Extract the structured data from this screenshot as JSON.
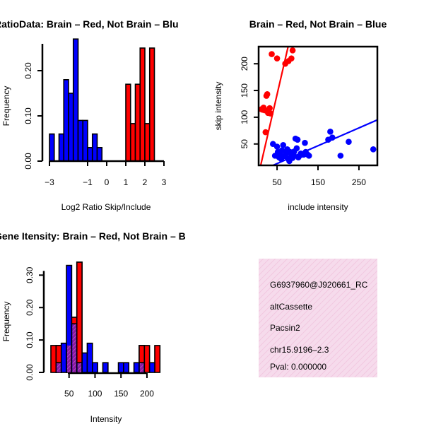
{
  "chart_data": [
    {
      "id": "ratio",
      "type": "bar",
      "title": "RatioData: Brain – Red, Not Brain – Blu",
      "xlabel": "Log2 Ratio Skip/Include",
      "ylabel": "Frequency",
      "xlim": [
        -3,
        3
      ],
      "ylim": [
        0,
        0.25
      ],
      "xticks": [
        -3,
        -1,
        0,
        1,
        2,
        3
      ],
      "yticks": [
        0.0,
        0.1,
        0.2
      ],
      "bin_width": 0.25,
      "series": [
        {
          "name": "Not Brain",
          "color": "#0000ff",
          "bins": [
            [
              -3.0,
              0.06
            ],
            [
              -2.5,
              0.06
            ],
            [
              -2.25,
              0.18
            ],
            [
              -2.0,
              0.15
            ],
            [
              -1.75,
              0.27
            ],
            [
              -1.5,
              0.09
            ],
            [
              -1.25,
              0.09
            ],
            [
              -1.0,
              0.03
            ],
            [
              -0.75,
              0.06
            ],
            [
              -0.5,
              0.03
            ]
          ]
        },
        {
          "name": "Brain",
          "color": "#ff0000",
          "bins": [
            [
              1.0,
              0.17
            ],
            [
              1.25,
              0.083
            ],
            [
              1.5,
              0.17
            ],
            [
              1.75,
              0.25
            ],
            [
              2.0,
              0.083
            ],
            [
              2.25,
              0.25
            ]
          ]
        }
      ]
    },
    {
      "id": "scatter",
      "type": "scatter",
      "title": "Brain – Red, Not Brain – Blue",
      "xlabel": "include intensity",
      "ylabel": "skip intensity",
      "xlim": [
        5,
        295
      ],
      "ylim": [
        10,
        232
      ],
      "xticks": [
        50,
        150,
        250
      ],
      "xticklabels_shown": [
        50,
        150,
        250
      ],
      "yticks": [
        50,
        100,
        150,
        200
      ],
      "series": [
        {
          "name": "Brain",
          "color": "#ff0000",
          "points": [
            [
              12,
              115
            ],
            [
              15,
              114
            ],
            [
              17,
              118
            ],
            [
              20,
              113
            ],
            [
              22,
              72
            ],
            [
              24,
              140
            ],
            [
              26,
              143
            ],
            [
              28,
              108
            ],
            [
              30,
              108
            ],
            [
              32,
              117
            ],
            [
              34,
              107
            ],
            [
              37,
              218
            ],
            [
              50,
              210
            ],
            [
              70,
              200
            ],
            [
              78,
              205
            ],
            [
              85,
              210
            ],
            [
              88,
              225
            ]
          ],
          "fit": [
            [
              10,
              10
            ],
            [
              77,
              232
            ]
          ]
        },
        {
          "name": "Not Brain",
          "color": "#0000ff",
          "points": [
            [
              40,
              50
            ],
            [
              45,
              28
            ],
            [
              50,
              45
            ],
            [
              52,
              35
            ],
            [
              55,
              25
            ],
            [
              58,
              30
            ],
            [
              60,
              22
            ],
            [
              62,
              38
            ],
            [
              65,
              48
            ],
            [
              70,
              27
            ],
            [
              72,
              32
            ],
            [
              75,
              40
            ],
            [
              78,
              22
            ],
            [
              80,
              18
            ],
            [
              82,
              35
            ],
            [
              85,
              28
            ],
            [
              88,
              24
            ],
            [
              90,
              30
            ],
            [
              92,
              36
            ],
            [
              95,
              60
            ],
            [
              98,
              42
            ],
            [
              100,
              58
            ],
            [
              102,
              25
            ],
            [
              105,
              28
            ],
            [
              108,
              32
            ],
            [
              110,
              30
            ],
            [
              115,
              30
            ],
            [
              118,
              52
            ],
            [
              120,
              35
            ],
            [
              125,
              30
            ],
            [
              128,
              28
            ],
            [
              175,
              58
            ],
            [
              180,
              73
            ],
            [
              185,
              62
            ],
            [
              205,
              28
            ],
            [
              225,
              54
            ],
            [
              285,
              40
            ]
          ],
          "fit": [
            [
              40,
              10
            ],
            [
              295,
              95
            ]
          ]
        }
      ]
    },
    {
      "id": "intensity",
      "type": "bar",
      "title": "Gene Itensity: Brain – Red, Not Brain – B",
      "xlabel": "Intensity",
      "ylabel": "Frequency",
      "xlim": [
        15,
        230
      ],
      "ylim": [
        0,
        0.34
      ],
      "xticks": [
        50,
        100,
        150,
        200
      ],
      "yticks": [
        0.0,
        0.1,
        0.2,
        0.3
      ],
      "bin_width": 10,
      "series": [
        {
          "name": "Brain",
          "color": "#ff0000",
          "bins": [
            [
              15,
              0.083
            ],
            [
              25,
              0.083
            ],
            [
              45,
              0.083
            ],
            [
              55,
              0.17
            ],
            [
              65,
              0.34
            ],
            [
              185,
              0.083
            ],
            [
              195,
              0.083
            ],
            [
              215,
              0.083
            ]
          ]
        },
        {
          "name": "Not Brain",
          "color": "#0000ff",
          "bins": [
            [
              25,
              0.03
            ],
            [
              35,
              0.09
            ],
            [
              45,
              0.33
            ],
            [
              55,
              0.15
            ],
            [
              65,
              0.03
            ],
            [
              75,
              0.06
            ],
            [
              85,
              0.09
            ],
            [
              95,
              0.03
            ],
            [
              115,
              0.03
            ],
            [
              145,
              0.03
            ],
            [
              155,
              0.03
            ],
            [
              175,
              0.03
            ],
            [
              185,
              0.03
            ],
            [
              205,
              0.03
            ]
          ]
        }
      ]
    }
  ],
  "info_panel": {
    "id_line": "G6937960@J920661_RC",
    "type_line": "altCassette",
    "gene_line": "Pacsin2",
    "location_line": "chr15.9196–2.3",
    "pval_line": "Pval: 0.000000",
    "background_color": "#f6dbec",
    "pval_color": "#b22222"
  }
}
